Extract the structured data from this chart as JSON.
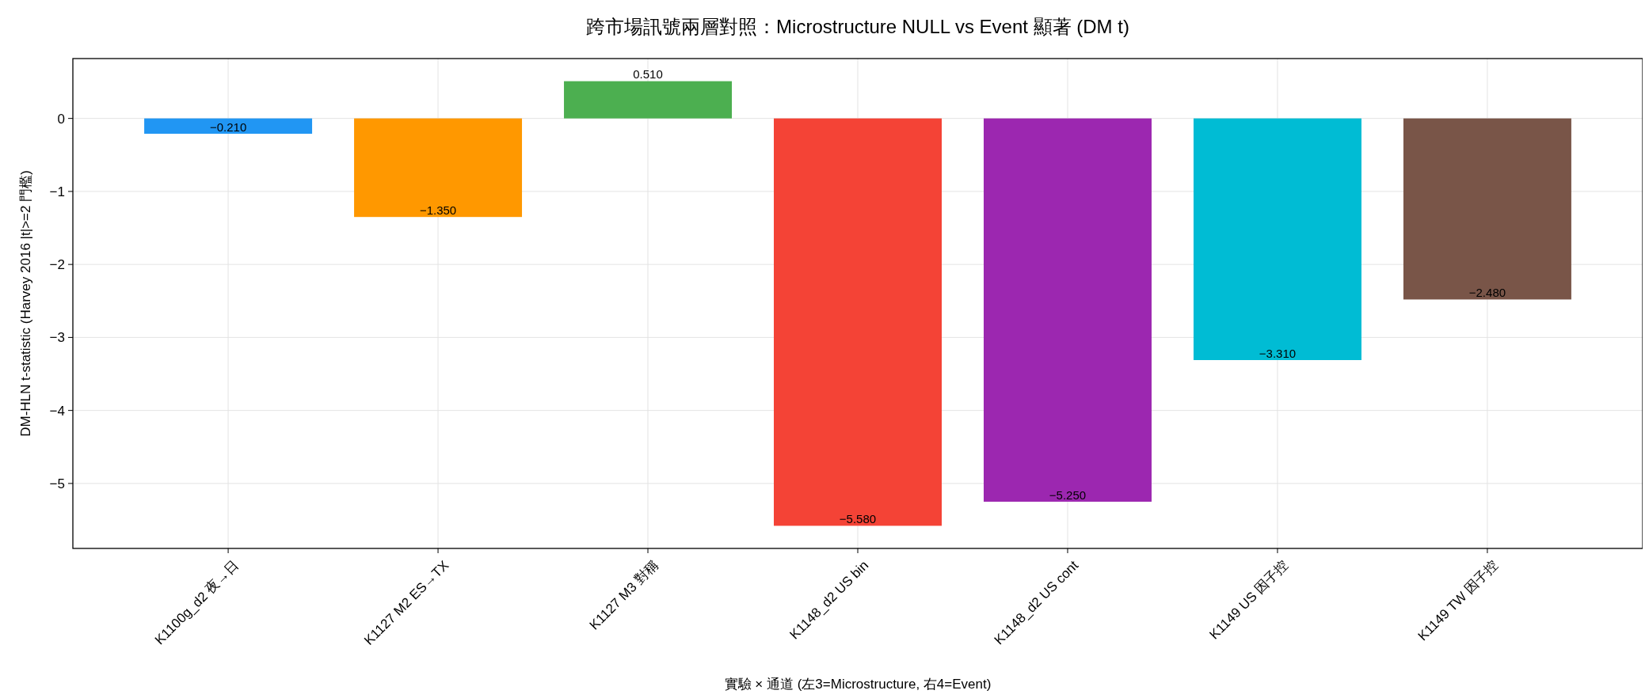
{
  "chart_data": {
    "type": "bar",
    "title": "跨市場訊號兩層對照：Microstructure NULL vs Event 顯著 (DM t)",
    "xlabel": "實驗 × 通道 (左3=Microstructure, 右4=Event)",
    "ylabel": "DM-HLN t-statistic (Harvey 2016 |t|>=2 門檻)",
    "categories": [
      "K1100g_d2 夜→日",
      "K1127 M2 ES→TX",
      "K1127 M3 對稱",
      "K1148_d2 US bin",
      "K1148_d2 US cont",
      "K1149 US 因子控",
      "K1149 TW 因子控"
    ],
    "values": [
      -0.21,
      -1.35,
      0.51,
      -5.58,
      -5.25,
      -3.31,
      -2.48
    ],
    "value_labels": [
      "−0.210",
      "−1.350",
      "0.510",
      "−5.580",
      "−5.250",
      "−3.310",
      "−2.480"
    ],
    "colors": [
      "#2196f3",
      "#ff9800",
      "#4caf50",
      "#f44336",
      "#9c27b0",
      "#00bcd4",
      "#795548"
    ],
    "ylim": [
      -5.89,
      0.82
    ],
    "yticks": [
      {
        "value": -5,
        "label": "−5"
      },
      {
        "value": -4,
        "label": "−4"
      },
      {
        "value": -3,
        "label": "−3"
      },
      {
        "value": -2,
        "label": "−2"
      },
      {
        "value": -1,
        "label": "−1"
      },
      0
    ],
    "grid": true
  }
}
